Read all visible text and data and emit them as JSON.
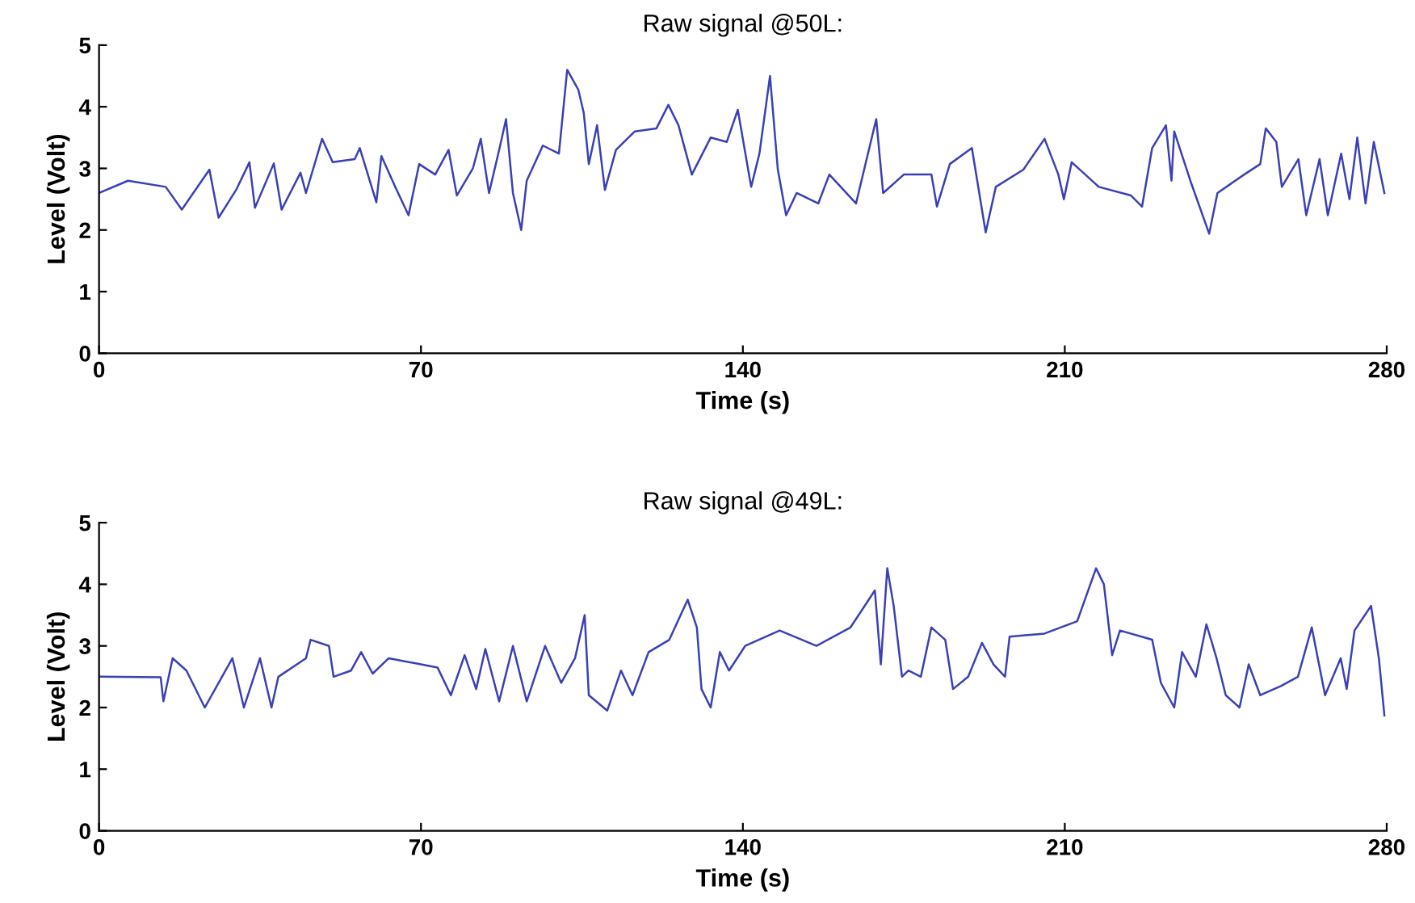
{
  "chart_data": [
    {
      "type": "line",
      "title": "Raw signal @50L:",
      "xlabel": "Time (s)",
      "ylabel": "Level (Volt)",
      "xlim": [
        0,
        280
      ],
      "xticks": [
        0,
        70,
        140,
        210,
        280
      ],
      "ylim": [
        0,
        5
      ],
      "yticks": [
        0,
        1,
        2,
        3,
        4,
        5
      ],
      "series": [
        {
          "color": "#3a40b5",
          "x": [
            0,
            6.3,
            14.5,
            18,
            24,
            26,
            29.8,
            32.7,
            33.9,
            38,
            39.7,
            43.8,
            45,
            48.5,
            50.8,
            55.6,
            56.7,
            60.3,
            61.4,
            64.4,
            67.3,
            69.6,
            73.1,
            76,
            77.8,
            81.3,
            83,
            84.8,
            87.1,
            88.5,
            90,
            91.8,
            93,
            96.5,
            100,
            101.8,
            104.2,
            105.4,
            106.5,
            108.3,
            110,
            112.4,
            116.5,
            121.2,
            123.8,
            126,
            128.9,
            133,
            136.5,
            138.9,
            141.8,
            143.6,
            145.9,
            147.6,
            149.4,
            151.7,
            156.4,
            158.8,
            164.6,
            169,
            170.5,
            175,
            181,
            182.2,
            185,
            189.8,
            192.8,
            195,
            201,
            205.6,
            208.6,
            209.8,
            211.5,
            217.4,
            224.4,
            226.8,
            229,
            232,
            233.2,
            233.8,
            237.3,
            241.4,
            243.2,
            249,
            252.5,
            253.7,
            256,
            257.2,
            260.8,
            262.5,
            265.4,
            267.2,
            270.1,
            271.9,
            273.6,
            275.4,
            277.2,
            279.5
          ],
          "values": [
            2.6,
            2.8,
            2.7,
            2.33,
            2.98,
            2.2,
            2.65,
            3.1,
            2.36,
            3.08,
            2.33,
            2.93,
            2.6,
            3.48,
            3.1,
            3.15,
            3.33,
            2.45,
            3.2,
            2.7,
            2.24,
            3.07,
            2.9,
            3.3,
            2.56,
            3.0,
            3.48,
            2.6,
            3.33,
            3.8,
            2.6,
            2.0,
            2.8,
            3.37,
            3.24,
            4.6,
            4.28,
            3.9,
            3.07,
            3.7,
            2.65,
            3.3,
            3.6,
            3.65,
            4.03,
            3.7,
            2.9,
            3.5,
            3.43,
            3.95,
            2.7,
            3.24,
            4.5,
            2.98,
            2.24,
            2.6,
            2.43,
            2.9,
            2.43,
            3.8,
            2.6,
            2.9,
            2.9,
            2.38,
            3.07,
            3.33,
            1.96,
            2.7,
            2.98,
            3.48,
            2.9,
            2.5,
            3.1,
            2.7,
            2.56,
            2.38,
            3.33,
            3.7,
            2.8,
            3.6,
            2.8,
            1.94,
            2.6,
            2.9,
            3.07,
            3.65,
            3.43,
            2.7,
            3.15,
            2.24,
            3.15,
            2.24,
            3.24,
            2.5,
            3.5,
            2.43,
            3.43,
            2.6
          ]
        }
      ]
    },
    {
      "type": "line",
      "title": "Raw signal @49L:",
      "xlabel": "Time (s)",
      "ylabel": "Level (Volt)",
      "xlim": [
        0,
        280
      ],
      "xticks": [
        0,
        70,
        140,
        210,
        280
      ],
      "ylim": [
        0,
        5
      ],
      "yticks": [
        0,
        1,
        2,
        3,
        4,
        5
      ],
      "series": [
        {
          "color": "#3a40b5",
          "x": [
            0,
            13.4,
            14,
            16,
            19,
            23,
            29,
            31.5,
            35,
            37.5,
            39,
            45,
            46,
            50,
            51,
            54.8,
            57,
            59.5,
            63,
            70,
            73.6,
            76.5,
            79.5,
            82,
            84,
            87,
            90,
            93,
            97,
            100.5,
            103.5,
            105.6,
            106.5,
            110.5,
            113.5,
            116,
            119.5,
            124,
            128,
            130,
            131,
            133,
            135,
            137,
            140.5,
            148,
            156,
            163.4,
            168.7,
            170,
            171.4,
            172.8,
            174.6,
            176,
            178.7,
            181,
            184,
            185.7,
            189,
            192,
            194.5,
            197,
            198,
            205.6,
            212.7,
            216.8,
            218.5,
            220.3,
            222,
            229,
            230.9,
            233.8,
            235.5,
            238.5,
            240.8,
            243,
            245,
            248,
            250,
            252.5,
            257,
            260.7,
            263.7,
            266.6,
            270,
            271.3,
            273,
            276.6,
            278.3,
            279.5
          ],
          "values": [
            2.5,
            2.49,
            2.1,
            2.8,
            2.6,
            2.0,
            2.8,
            2.0,
            2.8,
            2.0,
            2.5,
            2.8,
            3.1,
            3.0,
            2.5,
            2.6,
            2.9,
            2.55,
            2.8,
            2.7,
            2.65,
            2.2,
            2.85,
            2.3,
            2.95,
            2.1,
            3.0,
            2.1,
            3.0,
            2.4,
            2.8,
            3.5,
            2.2,
            1.95,
            2.6,
            2.2,
            2.9,
            3.1,
            3.75,
            3.3,
            2.3,
            2.0,
            2.9,
            2.6,
            3.0,
            3.25,
            3.0,
            3.3,
            3.9,
            2.7,
            4.26,
            3.65,
            2.5,
            2.6,
            2.5,
            3.3,
            3.1,
            2.3,
            2.5,
            3.05,
            2.7,
            2.5,
            3.15,
            3.2,
            3.4,
            4.26,
            4.0,
            2.85,
            3.25,
            3.1,
            2.4,
            2.0,
            2.9,
            2.5,
            3.35,
            2.8,
            2.2,
            2.0,
            2.7,
            2.2,
            2.35,
            2.5,
            3.3,
            2.2,
            2.8,
            2.3,
            3.25,
            3.65,
            2.8,
            1.87
          ]
        }
      ]
    }
  ]
}
